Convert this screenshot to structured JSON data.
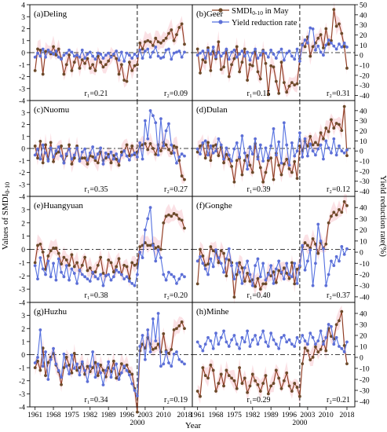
{
  "chart_data": {
    "type": "line",
    "ylabel_left": "Values of SMDI",
    "ylabel_left_sub": "0-10",
    "ylabel_right": "Yield reduction rate(%)",
    "xlabel": "Year",
    "left_yticks": [
      -4,
      -3,
      -2,
      -1,
      0,
      1,
      2,
      3,
      4
    ],
    "left_ylim": [
      -4,
      4
    ],
    "right_yticks": [
      -40,
      -30,
      -20,
      -10,
      0,
      10,
      20,
      30,
      40,
      50
    ],
    "right_ylim": [
      -45,
      50
    ],
    "xticks": [
      1961,
      1968,
      1975,
      1982,
      1989,
      1996,
      2003,
      2010,
      2018
    ],
    "xlim": [
      1959,
      2021
    ],
    "breakpoint_label": "2000",
    "breakpoint_year": 2000,
    "legend": {
      "location": "top-right of panel (b)",
      "smdi_label": "SMDI",
      "smdi_sub": "0-10",
      "smdi_suffix": " in May",
      "yield_label": "Yield reduction rate"
    },
    "colors": {
      "smdi": "#8B3A1E",
      "yield": "#5470E0",
      "band": "#F7C8CF",
      "smdi_dot": "#6B4A2A",
      "yield_dot": "#5D6FD6"
    },
    "start_year": 1961,
    "panels": [
      {
        "label": "(a)Deling",
        "r1": "r₁=0.21",
        "r2": "r₂=0.09",
        "smdi": [
          -1.5,
          0.3,
          0.2,
          -1.8,
          0.1,
          0.2,
          -0.1,
          0.5,
          -0.2,
          0.3,
          -0.5,
          -1.8,
          -1.0,
          -0.2,
          -1.5,
          -0.8,
          -0.2,
          -1.3,
          -0.6,
          -0.9,
          -0.5,
          -1.3,
          -1.0,
          -1.5,
          -0.3,
          -0.8,
          -1.2,
          -1.0,
          -0.7,
          -0.3,
          -0.2,
          -0.5,
          -1.8,
          -1.0,
          -2.3,
          -2.4,
          -0.8,
          -1.5,
          -1.1,
          -1.0,
          0.8,
          0.3,
          0.9,
          1.0,
          0.9,
          0.6,
          1.2,
          0.9,
          0.8,
          1.0,
          1.2,
          1.6,
          1.9,
          1.0,
          1.5,
          2.1,
          2.4,
          0.7
        ],
        "yield": [
          -2,
          2,
          -1,
          6,
          -2,
          5,
          3,
          1,
          4,
          -2,
          -4,
          0,
          2,
          5,
          3,
          -1,
          0,
          -2,
          5,
          -3,
          1,
          3,
          -1,
          -4,
          2,
          1,
          -3,
          0,
          2,
          -2,
          1,
          4,
          -5,
          3,
          -6,
          2,
          0,
          -3,
          1,
          -1,
          5,
          -3,
          4,
          6,
          -2,
          3,
          8,
          -1,
          -3,
          -2,
          5,
          6,
          -4,
          2,
          3,
          4,
          -2,
          3
        ]
      },
      {
        "label": "(b)Geer",
        "r1": "r₁=0.15",
        "r2": "r₂=0.31",
        "smdi": [
          0.3,
          -1.7,
          -0.6,
          -0.8,
          0.4,
          -1.5,
          0.1,
          -0.5,
          0.9,
          -1.4,
          -1.2,
          0.2,
          -2.0,
          -1.0,
          -0.5,
          0.5,
          -1.6,
          -0.8,
          0.3,
          -2.3,
          -1.0,
          -1.1,
          0.1,
          -1.6,
          -2.2,
          0.2,
          -0.9,
          -3.5,
          -1.1,
          -1.2,
          -2.4,
          -3.4,
          -0.8,
          -2.5,
          -3.3,
          -2.8,
          -2.5,
          -2.7,
          -2.6,
          -0.5,
          0.7,
          0.5,
          1.3,
          -0.3,
          0.5,
          0.8,
          1.2,
          1.5,
          0.4,
          2.0,
          0.7,
          1.0,
          3.6,
          2.2,
          2.4,
          1.6,
          0.5,
          -1.3
        ],
        "yield": [
          0,
          2,
          4,
          -3,
          5,
          1,
          8,
          -2,
          3,
          -1,
          2,
          6,
          -4,
          3,
          5,
          -2,
          1,
          4,
          -1,
          3,
          -5,
          2,
          6,
          -3,
          0,
          4,
          2,
          -2,
          5,
          1,
          -3,
          3,
          6,
          -5,
          2,
          4,
          -1,
          -4,
          6,
          -6,
          10,
          15,
          12,
          27,
          26,
          5,
          9,
          3,
          0,
          10,
          15,
          12,
          9,
          6,
          11,
          8,
          12,
          8
        ]
      },
      {
        "label": "(c)Nuomu",
        "r1": "r₁=0.35",
        "r2": "r₂=0.27",
        "smdi": [
          0.2,
          -0.8,
          0.6,
          -1.2,
          0.3,
          -0.9,
          0.5,
          -1.1,
          -0.4,
          -0.3,
          0.2,
          -1.2,
          -0.6,
          0.3,
          -1.3,
          -0.8,
          0.2,
          -0.9,
          -0.8,
          -0.8,
          -1.3,
          -0.6,
          -0.7,
          -1.0,
          -1.2,
          -0.3,
          -1.0,
          -0.8,
          -0.5,
          -1.2,
          -0.6,
          -0.9,
          -1.4,
          -0.3,
          -0.2,
          0.3,
          -0.6,
          0.2,
          -0.5,
          -0.3,
          0.2,
          0.3,
          0.4,
          -0.1,
          0.4,
          0.0,
          -0.5,
          0.3,
          -0.2,
          0.5,
          0.3,
          -0.1,
          -0.4,
          0.2,
          0.1,
          -1.0,
          -2.3,
          -2.6
        ],
        "yield": [
          -4,
          2,
          -8,
          6,
          -2,
          -10,
          3,
          -6,
          0,
          4,
          -5,
          -12,
          -3,
          2,
          -8,
          -4,
          3,
          -10,
          -1,
          2,
          -9,
          -2,
          4,
          -7,
          -3,
          3,
          -13,
          -2,
          -6,
          -1,
          -8,
          -3,
          -10,
          -4,
          0,
          -5,
          -9,
          -4,
          -2,
          -6,
          8,
          -8,
          30,
          12,
          40,
          35,
          28,
          -4,
          32,
          5,
          20,
          27,
          6,
          -2,
          -12,
          -6,
          -3,
          -5
        ]
      },
      {
        "label": "(d)Dulan",
        "r1": "r₁=0.39",
        "r2": "r₂=0.12",
        "smdi": [
          -0.3,
          0.2,
          0.4,
          -0.8,
          0.5,
          -1.0,
          0.2,
          0.3,
          -0.6,
          0.1,
          -1.2,
          -0.5,
          -0.9,
          -1.5,
          -2.8,
          -1.0,
          -0.8,
          -2.2,
          -1.0,
          -0.6,
          -1.4,
          -2.0,
          0.4,
          -0.7,
          -1.6,
          -2.8,
          -2.0,
          -1.0,
          -0.8,
          -2.6,
          -0.4,
          -1.4,
          -2.2,
          -1.3,
          -0.9,
          -1.7,
          -2.0,
          -1.1,
          -2.5,
          0.2,
          -0.2,
          0.6,
          0.2,
          1.0,
          0.3,
          0.5,
          0.3,
          1.3,
          0.8,
          1.7,
          1.4,
          2.4,
          1.7,
          2.1,
          2.0,
          1.5,
          3.5,
          -0.6
        ],
        "yield": [
          2,
          -3,
          8,
          10,
          -4,
          5,
          -2,
          0,
          12,
          6,
          -8,
          3,
          -4,
          -10,
          2,
          8,
          -6,
          15,
          -2,
          -18,
          4,
          -3,
          12,
          -8,
          6,
          -10,
          3,
          -7,
          5,
          22,
          -4,
          9,
          -12,
          28,
          6,
          -14,
          8,
          -5,
          0,
          18,
          -6,
          12,
          -5,
          7,
          0,
          -4,
          2,
          6,
          -8,
          10,
          3,
          -2,
          12,
          -4,
          5,
          0,
          -2,
          1
        ]
      },
      {
        "label": "(e)Huangyuan",
        "r1": "r₁=0.38",
        "r2": "r₂=0.20",
        "smdi": [
          -1.0,
          0.3,
          0.4,
          -0.2,
          -1.5,
          -0.5,
          -0.1,
          0.1,
          0.1,
          -0.3,
          -1.1,
          -0.6,
          -0.8,
          -1.2,
          -0.4,
          -1.3,
          -1.0,
          -1.6,
          -1.2,
          -0.6,
          -1.6,
          -1.4,
          -1.8,
          -1.7,
          -1.2,
          -0.6,
          -1.8,
          -2.0,
          -0.8,
          -1.0,
          -1.7,
          -1.3,
          -0.7,
          -1.9,
          -1.2,
          -1.3,
          -2.2,
          -1.0,
          -1.2,
          -1.1,
          0.2,
          0.3,
          0.5,
          0.3,
          0.3,
          0.4,
          0.1,
          0.2,
          0.0,
          2.0,
          2.5,
          2.6,
          2.5,
          2.7,
          2.6,
          2.3,
          2.2,
          1.6
        ],
        "yield": [
          -12,
          -24,
          -5,
          -15,
          -20,
          -8,
          -22,
          -10,
          -25,
          -6,
          -18,
          -22,
          -12,
          -25,
          -15,
          -19,
          -28,
          -16,
          -20,
          -22,
          -24,
          -26,
          -18,
          -22,
          -24,
          -20,
          -30,
          -21,
          -20,
          -25,
          -22,
          -16,
          -18,
          -20,
          -24,
          -22,
          -26,
          -28,
          -30,
          -20,
          0,
          -5,
          20,
          30,
          40,
          6,
          -8,
          2,
          -5,
          -20,
          -25,
          -18,
          -20,
          -22,
          -28,
          -24,
          -20,
          -22
        ]
      },
      {
        "label": "(f)Gonghe",
        "r1": "r₁=0.40",
        "r2": "r₂=0.37",
        "smdi": [
          -2.6,
          0.0,
          -0.5,
          -1.2,
          -1.1,
          0.2,
          -0.1,
          -0.2,
          -1.0,
          -0.1,
          -0.3,
          -2.0,
          -0.8,
          -1.0,
          -3.6,
          -1.9,
          -1.0,
          -1.4,
          -2.4,
          -1.8,
          -2.4,
          -2.3,
          -2.8,
          -2.2,
          -3.0,
          -2.6,
          -2.6,
          -1.8,
          -2.0,
          -1.7,
          -2.5,
          -1.6,
          -1.8,
          -1.4,
          -1.8,
          -2.2,
          -1.0,
          -2.6,
          -1.5,
          -1.3,
          0.2,
          0.5,
          0.3,
          0.1,
          0.8,
          0.4,
          -0.3,
          0.5,
          0.1,
          0.4,
          2.0,
          2.5,
          2.8,
          2.6,
          3.0,
          2.8,
          3.6,
          3.3
        ],
        "yield": [
          -8,
          -4,
          -10,
          -15,
          -20,
          -6,
          -13,
          2,
          -5,
          -10,
          -18,
          -6,
          3,
          -12,
          -24,
          -10,
          -18,
          -28,
          -14,
          -8,
          -20,
          -30,
          -12,
          -6,
          -22,
          -10,
          -25,
          -20,
          -12,
          -28,
          -15,
          -8,
          -18,
          -24,
          -10,
          -20,
          -22,
          -10,
          -28,
          -12,
          6,
          -16,
          -8,
          2,
          -30,
          -10,
          25,
          10,
          3,
          -30,
          -20,
          -8,
          -12,
          -4,
          -8,
          5,
          -2,
          3
        ]
      },
      {
        "label": "(g)Huzhu",
        "r1": "r₁=0.34",
        "r2": "r₂=0.19",
        "smdi": [
          -1.0,
          -0.5,
          -1.2,
          0.5,
          -1.6,
          -0.6,
          -0.2,
          0.1,
          -0.8,
          -1.3,
          -2.3,
          -1.0,
          -0.2,
          -0.8,
          -1.4,
          0.1,
          -1.2,
          -1.0,
          -0.7,
          -1.5,
          -0.9,
          -1.3,
          -1.0,
          -0.6,
          -1.6,
          -0.8,
          -1.2,
          -1.7,
          -1.0,
          -1.3,
          -0.5,
          -1.8,
          -1.5,
          -0.7,
          -1.0,
          -0.8,
          -1.3,
          -1.5,
          -2.6,
          -4.4,
          0.3,
          0.8,
          0.5,
          1.3,
          0.8,
          0.4,
          0.5,
          0.8,
          0.2,
          1.6,
          0.3,
          0.1,
          0.4,
          1.9,
          2.0,
          2.2,
          2.5,
          2.0
        ],
        "yield": [
          -5,
          0,
          25,
          -8,
          5,
          -20,
          -2,
          8,
          -6,
          -12,
          -18,
          3,
          -8,
          -15,
          2,
          -10,
          -6,
          -16,
          -4,
          -12,
          -22,
          -8,
          5,
          -18,
          -6,
          -14,
          -25,
          -12,
          -4,
          -18,
          -10,
          -6,
          -20,
          -14,
          -8,
          -12,
          -16,
          -24,
          -30,
          -35,
          10,
          20,
          -2,
          25,
          5,
          35,
          15,
          40,
          -8,
          -6,
          5,
          -5,
          -8,
          3,
          5,
          -2,
          -4,
          -6
        ]
      },
      {
        "label": "(h)Minhe",
        "r1": "r₁=0.29",
        "r2": "r₂=0.21",
        "smdi": [
          -2.8,
          -3.2,
          -1.0,
          -1.6,
          -1.8,
          -0.8,
          -1.2,
          -2.8,
          -2.2,
          -1.5,
          -2.4,
          -1.2,
          -1.6,
          -1.8,
          -2.0,
          -2.6,
          -1.0,
          -2.2,
          -1.8,
          -2.9,
          -2.4,
          -1.5,
          -2.0,
          -2.3,
          -2.8,
          -2.2,
          -1.6,
          -3.0,
          -2.4,
          -2.2,
          -1.2,
          -1.8,
          -2.6,
          -2.0,
          -1.4,
          -2.4,
          -2.8,
          -2.2,
          -2.5,
          -3.2,
          -0.7,
          0.5,
          0.3,
          -0.4,
          -0.2,
          0.6,
          0.2,
          0.4,
          1.0,
          0.3,
          2.0,
          1.4,
          1.2,
          2.3,
          2.6,
          3.3,
          0.7,
          -0.7
        ],
        "yield": [
          14,
          10,
          6,
          12,
          18,
          15,
          8,
          22,
          12,
          18,
          24,
          14,
          10,
          16,
          20,
          12,
          8,
          18,
          14,
          24,
          10,
          16,
          20,
          12,
          18,
          24,
          14,
          10,
          22,
          16,
          12,
          8,
          18,
          20,
          14,
          16,
          12,
          10,
          18,
          14,
          20,
          15,
          12,
          22,
          18,
          12,
          15,
          24,
          12,
          18,
          30,
          28,
          12,
          18,
          10,
          8,
          5,
          14
        ]
      }
    ]
  }
}
